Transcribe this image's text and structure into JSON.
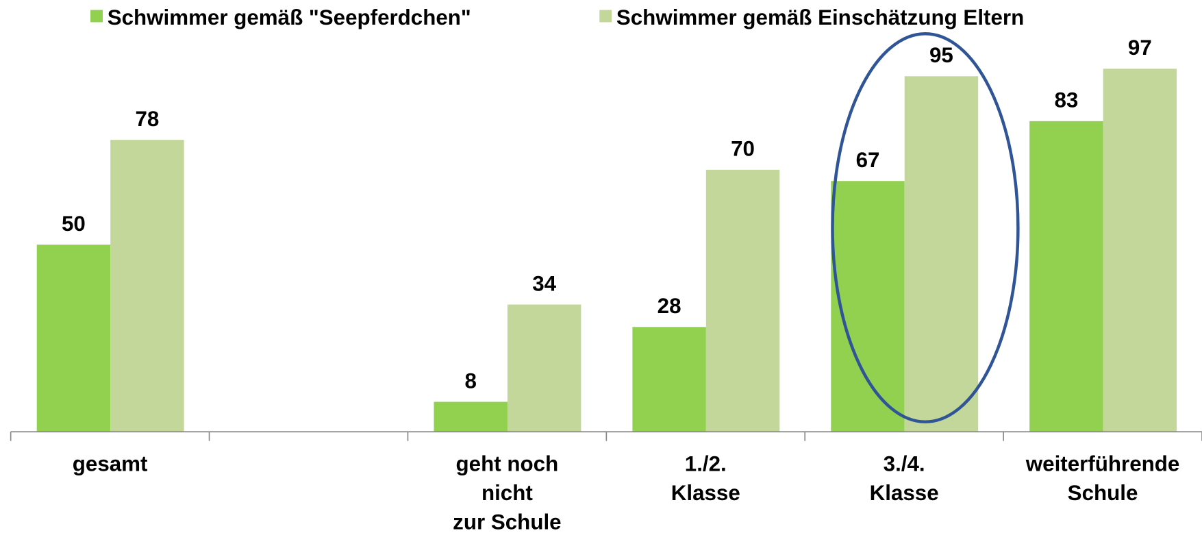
{
  "chart_data": {
    "type": "bar",
    "categories": [
      "gesamt",
      null,
      "geht noch\nnicht\nzur Schule",
      "1./2.\nKlasse",
      "3./4.\nKlasse",
      "weiterführende\nSchule"
    ],
    "series": [
      {
        "name": "Schwimmer gemäß \"Seepferdchen\"",
        "color": "#92d050",
        "values": [
          50,
          null,
          8,
          28,
          67,
          83
        ]
      },
      {
        "name": "Schwimmer gemäß Einschätzung Eltern",
        "color": "#c4d79b",
        "values": [
          78,
          null,
          34,
          70,
          95,
          97
        ]
      }
    ],
    "ylim": [
      0,
      100
    ],
    "legend": "top"
  }
}
